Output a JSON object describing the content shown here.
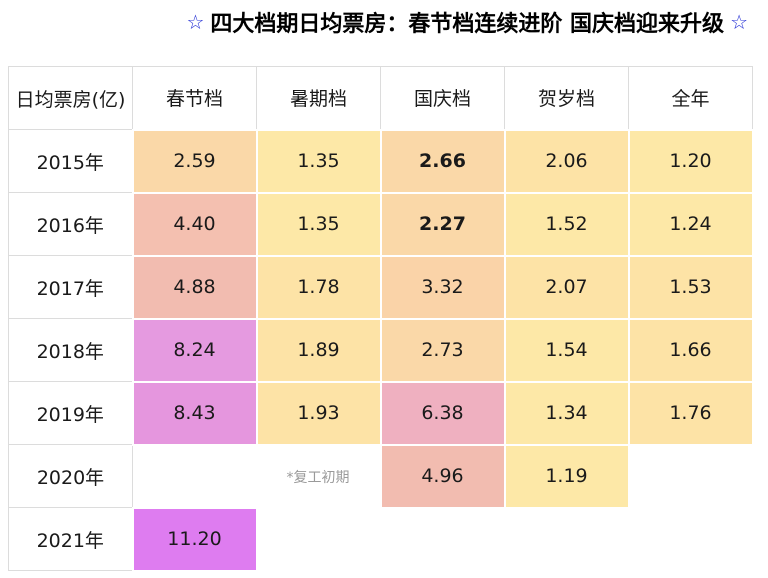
{
  "title": {
    "star_left": "☆",
    "text": "四大档期日均票房：春节档连续进阶 国庆档迎来升级",
    "star_right": "☆"
  },
  "chart_data": {
    "type": "table",
    "columns": [
      "日均票房(亿)",
      "春节档",
      "暑期档",
      "国庆档",
      "贺岁档",
      "全年"
    ],
    "rows": [
      {
        "year": "2015年",
        "cells": [
          {
            "v": "2.59",
            "c": "#fad8a8"
          },
          {
            "v": "1.35",
            "c": "#fde8a7"
          },
          {
            "v": "2.66",
            "c": "#fad8a8",
            "b": true
          },
          {
            "v": "2.06",
            "c": "#fde3a6"
          },
          {
            "v": "1.20",
            "c": "#fde8a7"
          }
        ]
      },
      {
        "year": "2016年",
        "cells": [
          {
            "v": "4.40",
            "c": "#f4c0b0"
          },
          {
            "v": "1.35",
            "c": "#fde8a7"
          },
          {
            "v": "2.27",
            "c": "#fad8a8",
            "b": true
          },
          {
            "v": "1.52",
            "c": "#fde8a7"
          },
          {
            "v": "1.24",
            "c": "#fde8a7"
          }
        ]
      },
      {
        "year": "2017年",
        "cells": [
          {
            "v": "4.88",
            "c": "#f2bcb0"
          },
          {
            "v": "1.78",
            "c": "#fde3a6"
          },
          {
            "v": "3.32",
            "c": "#fad3a8"
          },
          {
            "v": "2.07",
            "c": "#fde3a6"
          },
          {
            "v": "1.53",
            "c": "#fde3a6"
          }
        ]
      },
      {
        "year": "2018年",
        "cells": [
          {
            "v": "8.24",
            "c": "#e59ae0"
          },
          {
            "v": "1.89",
            "c": "#fde3a6"
          },
          {
            "v": "2.73",
            "c": "#fad8a8"
          },
          {
            "v": "1.54",
            "c": "#fde8a7"
          },
          {
            "v": "1.66",
            "c": "#fde3a6"
          }
        ]
      },
      {
        "year": "2019年",
        "cells": [
          {
            "v": "8.43",
            "c": "#e596de"
          },
          {
            "v": "1.93",
            "c": "#fde3a6"
          },
          {
            "v": "6.38",
            "c": "#efb0c0"
          },
          {
            "v": "1.34",
            "c": "#fde8a7"
          },
          {
            "v": "1.76",
            "c": "#fde3a6"
          }
        ]
      },
      {
        "year": "2020年",
        "cells": [
          {
            "v": "",
            "c": "empty"
          },
          {
            "v": "*复工初期",
            "c": "note"
          },
          {
            "v": "4.96",
            "c": "#f2bcb0"
          },
          {
            "v": "1.19",
            "c": "#fde8a7"
          },
          {
            "v": "",
            "c": "empty"
          }
        ]
      },
      {
        "year": "2021年",
        "cells": [
          {
            "v": "11.20",
            "c": "#de7cf0"
          },
          {
            "v": "",
            "c": "empty"
          },
          {
            "v": "",
            "c": "empty"
          },
          {
            "v": "",
            "c": "empty"
          },
          {
            "v": "",
            "c": "empty"
          }
        ]
      }
    ]
  }
}
